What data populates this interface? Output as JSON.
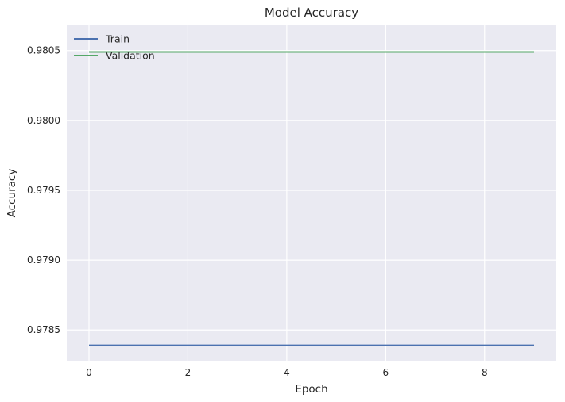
{
  "chart_data": {
    "type": "line",
    "title": "Model Accuracy",
    "xlabel": "Epoch",
    "ylabel": "Accuracy",
    "x": [
      0,
      1,
      2,
      3,
      4,
      5,
      6,
      7,
      8,
      9
    ],
    "xlim": [
      -0.45,
      9.45
    ],
    "ylim": [
      0.97828,
      0.98068
    ],
    "xticks": [
      0,
      2,
      4,
      6,
      8
    ],
    "xtick_labels": [
      "0",
      "2",
      "4",
      "6",
      "8"
    ],
    "yticks": [
      0.9785,
      0.979,
      0.9795,
      0.98,
      0.9805
    ],
    "ytick_labels": [
      "0.9785",
      "0.9790",
      "0.9795",
      "0.9800",
      "0.9805"
    ],
    "grid": true,
    "legend_position": "upper-left",
    "series": [
      {
        "name": "Train",
        "color": "#4c72b0",
        "values": [
          0.97839,
          0.97839,
          0.97839,
          0.97839,
          0.97839,
          0.97839,
          0.97839,
          0.97839,
          0.97839,
          0.97839
        ]
      },
      {
        "name": "Validation",
        "color": "#55a868",
        "values": [
          0.98049,
          0.98049,
          0.98049,
          0.98049,
          0.98049,
          0.98049,
          0.98049,
          0.98049,
          0.98049,
          0.98049
        ]
      }
    ]
  }
}
